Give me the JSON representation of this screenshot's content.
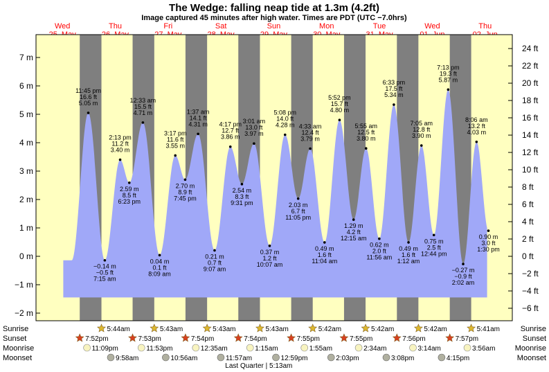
{
  "header": {
    "title": "The Wedge: falling  neap tide at 1.3m (4.2ft)",
    "subtitle": "Image captured 45 minutes after high water. Times are PDT (UTC −7.0hrs)"
  },
  "days": [
    {
      "dow": "Wed",
      "date": "25–May"
    },
    {
      "dow": "Thu",
      "date": "26–May"
    },
    {
      "dow": "Fri",
      "date": "27–May"
    },
    {
      "dow": "Sat",
      "date": "28–May"
    },
    {
      "dow": "Sun",
      "date": "29–May"
    },
    {
      "dow": "Mon",
      "date": "30–May"
    },
    {
      "dow": "Tue",
      "date": "31–May"
    },
    {
      "dow": "Wed",
      "date": "01–Jun"
    },
    {
      "dow": "Thu",
      "date": "02–Jun"
    }
  ],
  "chart_data": {
    "type": "area",
    "title": "The Wedge: falling  neap tide at 1.3m (4.2ft)",
    "subtitle": "Image captured 45 minutes after high water. Times are PDT (UTC −7.0hrs)",
    "x_unit": "hours since 25-May 00:00 PDT",
    "y_left_unit": "m",
    "y_right_unit": "ft",
    "ylim_m": [
      -2.3,
      7.7
    ],
    "left_ticks": [
      "−2 m",
      "−1 m",
      "0 m",
      "1 m",
      "2 m",
      "3 m",
      "4 m",
      "5 m",
      "6 m",
      "7 m"
    ],
    "right_ticks": [
      "−6 ft",
      "−4 ft",
      "−2 ft",
      "0 ft",
      "2 ft",
      "4 ft",
      "6 ft",
      "8 ft",
      "10 ft",
      "12 ft",
      "14 ft",
      "16 ft",
      "18 ft",
      "20 ft",
      "22 ft",
      "24 ft"
    ],
    "night_intervals_hours": [
      [
        19.87,
        29.73
      ],
      [
        43.88,
        53.72
      ],
      [
        67.9,
        77.72
      ],
      [
        91.9,
        101.72
      ],
      [
        115.92,
        125.7
      ],
      [
        139.92,
        149.7
      ],
      [
        163.93,
        173.7
      ],
      [
        187.95,
        197.68
      ]
    ],
    "extremes": [
      {
        "x": 23.75,
        "m": 5.05,
        "ft": "16.6 ft",
        "m_label": "5.05 m",
        "time": "11:45 pm",
        "type": "high"
      },
      {
        "x": 31.25,
        "m": -0.14,
        "ft": "−0.5 ft",
        "m_label": "−0.14 m",
        "time": "7:15 am",
        "type": "low"
      },
      {
        "x": 38.22,
        "m": 3.4,
        "ft": "11.2 ft",
        "m_label": "3.40 m",
        "time": "2:13 pm",
        "type": "high"
      },
      {
        "x": 42.38,
        "m": 2.59,
        "ft": "8.5 ft",
        "m_label": "2.59 m",
        "time": "6:23 pm",
        "type": "low"
      },
      {
        "x": 48.55,
        "m": 4.71,
        "ft": "15.5 ft",
        "m_label": "4.71 m",
        "time": "12:33 am",
        "type": "high"
      },
      {
        "x": 56.15,
        "m": 0.04,
        "ft": "0.1 ft",
        "m_label": "0.04 m",
        "time": "8:09 am",
        "type": "low"
      },
      {
        "x": 63.28,
        "m": 3.55,
        "ft": "11.6 ft",
        "m_label": "3.55 m",
        "time": "3:17 pm",
        "type": "high"
      },
      {
        "x": 67.75,
        "m": 2.7,
        "ft": "8.9 ft",
        "m_label": "2.70 m",
        "time": "7:45 pm",
        "type": "low"
      },
      {
        "x": 73.62,
        "m": 4.31,
        "ft": "14.1 ft",
        "m_label": "4.31 m",
        "time": "1:37 am",
        "type": "high"
      },
      {
        "x": 81.12,
        "m": 0.21,
        "ft": "0.7 ft",
        "m_label": "0.21 m",
        "time": "9:07 am",
        "type": "low"
      },
      {
        "x": 88.28,
        "m": 3.86,
        "ft": "12.7 ft",
        "m_label": "3.86 m",
        "time": "4:17 pm",
        "type": "high"
      },
      {
        "x": 93.52,
        "m": 2.54,
        "ft": "8.3 ft",
        "m_label": "2.54 m",
        "time": "9:31 pm",
        "type": "low"
      },
      {
        "x": 99.02,
        "m": 3.97,
        "ft": "13.0 ft",
        "m_label": "3.97 m",
        "time": "3:01 am",
        "type": "high"
      },
      {
        "x": 106.12,
        "m": 0.37,
        "ft": "1.2 ft",
        "m_label": "0.37 m",
        "time": "10:07 am",
        "type": "low"
      },
      {
        "x": 113.13,
        "m": 4.28,
        "ft": "14.0 ft",
        "m_label": "4.28 m",
        "time": "5:08 pm",
        "type": "high"
      },
      {
        "x": 119.08,
        "m": 2.03,
        "ft": "6.7 ft",
        "m_label": "2.03 m",
        "time": "11:05 pm",
        "type": "low"
      },
      {
        "x": 124.55,
        "m": 3.79,
        "ft": "12.4 ft",
        "m_label": "3.79 m",
        "time": "4:33 am",
        "type": "high"
      },
      {
        "x": 131.07,
        "m": 0.49,
        "ft": "1.6 ft",
        "m_label": "0.49 m",
        "time": "11:04 am",
        "type": "low"
      },
      {
        "x": 137.87,
        "m": 4.8,
        "ft": "15.7 ft",
        "m_label": "4.80 m",
        "time": "5:52 pm",
        "type": "high"
      },
      {
        "x": 144.25,
        "m": 1.29,
        "ft": "4.2 ft",
        "m_label": "1.29 m",
        "time": "12:15 am",
        "type": "low"
      },
      {
        "x": 149.92,
        "m": 3.8,
        "ft": "12.5 ft",
        "m_label": "3.80 m",
        "time": "5:55 am",
        "type": "high"
      },
      {
        "x": 155.93,
        "m": 0.62,
        "ft": "2.0 ft",
        "m_label": "0.62 m",
        "time": "11:56 am",
        "type": "low"
      },
      {
        "x": 162.55,
        "m": 5.34,
        "ft": "17.5 ft",
        "m_label": "5.34 m",
        "time": "6:33 pm",
        "type": "high"
      },
      {
        "x": 169.2,
        "m": 0.49,
        "ft": "1.6 ft",
        "m_label": "0.49 m",
        "time": "1:12 am",
        "type": "low"
      },
      {
        "x": 175.08,
        "m": 3.9,
        "ft": "12.8 ft",
        "m_label": "3.90 m",
        "time": "7:05 am",
        "type": "high"
      },
      {
        "x": 180.73,
        "m": 0.75,
        "ft": "2.5 ft",
        "m_label": "0.75 m",
        "time": "12:44 pm",
        "type": "low"
      },
      {
        "x": 187.22,
        "m": 5.87,
        "ft": "19.3 ft",
        "m_label": "5.87 m",
        "time": "7:13 pm",
        "type": "high"
      },
      {
        "x": 194.03,
        "m": -0.27,
        "ft": "−0.9 ft",
        "m_label": "−0.27 m",
        "time": "2:02 am",
        "type": "low"
      },
      {
        "x": 200.1,
        "m": 4.03,
        "ft": "13.2 ft",
        "m_label": "4.03 m",
        "time": "8:06 am",
        "type": "high"
      },
      {
        "x": 205.5,
        "m": 0.9,
        "ft": "3.0 ft",
        "m_label": "0.90 m",
        "time": "1:30 pm",
        "type": "low"
      }
    ],
    "colors": {
      "day": "#ffffc0",
      "night": "#7f7f7f",
      "tide": "#a0a8f8",
      "label_red": "#ff0000"
    }
  },
  "astro": {
    "rows": {
      "sunrise": "Sunrise",
      "sunset": "Sunset",
      "moonrise": "Moonrise",
      "moonset": "Moonset"
    },
    "sunrise": [
      {
        "x": 29.73,
        "t": "5:44am"
      },
      {
        "x": 53.72,
        "t": "5:43am"
      },
      {
        "x": 77.72,
        "t": "5:43am"
      },
      {
        "x": 101.72,
        "t": "5:43am"
      },
      {
        "x": 125.7,
        "t": "5:42am"
      },
      {
        "x": 149.7,
        "t": "5:42am"
      },
      {
        "x": 173.7,
        "t": "5:42am"
      },
      {
        "x": 197.68,
        "t": "5:41am"
      }
    ],
    "sunset": [
      {
        "x": 19.87,
        "t": "7:52pm"
      },
      {
        "x": 43.88,
        "t": "7:53pm"
      },
      {
        "x": 67.9,
        "t": "7:54pm"
      },
      {
        "x": 91.9,
        "t": "7:54pm"
      },
      {
        "x": 115.92,
        "t": "7:55pm"
      },
      {
        "x": 139.92,
        "t": "7:55pm"
      },
      {
        "x": 163.93,
        "t": "7:56pm"
      },
      {
        "x": 187.95,
        "t": "7:57pm"
      }
    ],
    "moonrise": [
      {
        "x": 23.15,
        "t": "11:09pm"
      },
      {
        "x": 47.88,
        "t": "11:53pm"
      },
      {
        "x": 72.58,
        "t": "12:35am"
      },
      {
        "x": 97.25,
        "t": "1:15am"
      },
      {
        "x": 121.92,
        "t": "1:55am"
      },
      {
        "x": 146.57,
        "t": "2:34am"
      },
      {
        "x": 171.23,
        "t": "3:14am"
      },
      {
        "x": 195.93,
        "t": "3:56am"
      }
    ],
    "moonset": [
      {
        "x": 33.97,
        "t": "9:58am"
      },
      {
        "x": 58.93,
        "t": "10:56am"
      },
      {
        "x": 83.95,
        "t": "11:57am"
      },
      {
        "x": 108.98,
        "t": "12:59pm"
      },
      {
        "x": 134.05,
        "t": "2:03pm"
      },
      {
        "x": 159.13,
        "t": "3:08pm"
      },
      {
        "x": 184.25,
        "t": "4:15pm"
      }
    ],
    "moon_phase": {
      "x": 101.2,
      "label": "Last Quarter | 5:13am"
    },
    "colors": {
      "star": "#ddb830",
      "star_set": "#d84020",
      "moon_rise": "#f8f4c0",
      "moon_set": "#b0b0a0"
    }
  }
}
